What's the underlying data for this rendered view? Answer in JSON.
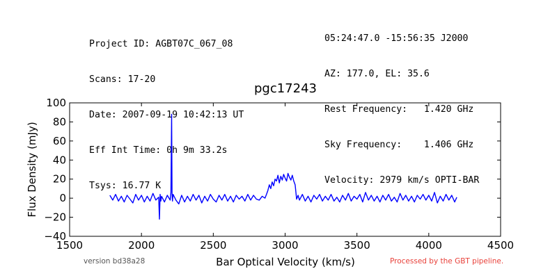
{
  "header": {
    "left_lines": [
      "Project ID: AGBT07C_067_08",
      "Scans: 17-20",
      "Date: 2007-09-19 10:42:13 UT",
      "Eff Int Time: 0h 9m 33.2s",
      "Tsys: 16.77 K"
    ],
    "right_lines": [
      "05:24:47.0 -15:56:35 J2000",
      "AZ: 177.0, EL: 35.6",
      "Rest Frequency:   1.420 GHz",
      "Sky Frequency:    1.406 GHz",
      "Velocity: 2979 km/s OPTI-BAR"
    ]
  },
  "footer": {
    "version": "version bd38a28",
    "pipeline": "Processed by the GBT pipeline."
  },
  "colors": {
    "series": "#0000ff",
    "pipeline_text": "#e8413a",
    "version_text": "#555555"
  },
  "chart_data": {
    "type": "line",
    "title": "pgc17243",
    "xlabel": "Bar Optical Velocity (km/s)",
    "ylabel": "Flux Density (mJy)",
    "xlim": [
      1500,
      4500
    ],
    "ylim": [
      -40,
      100
    ],
    "xticks": [
      1500,
      2000,
      2500,
      3000,
      3500,
      4000,
      4500
    ],
    "yticks": [
      -40,
      -20,
      0,
      20,
      40,
      60,
      80,
      100
    ],
    "grid": false,
    "series": [
      {
        "x": [
          1780,
          1800,
          1820,
          1840,
          1860,
          1880,
          1900,
          1920,
          1940,
          1960,
          1980,
          2000,
          2020,
          2040,
          2060,
          2080,
          2100,
          2120,
          2125,
          2130,
          2135,
          2140,
          2160,
          2180,
          2200,
          2205,
          2210,
          2213,
          2216,
          2220,
          2240,
          2260,
          2280,
          2300,
          2320,
          2340,
          2360,
          2380,
          2400,
          2420,
          2440,
          2460,
          2480,
          2500,
          2520,
          2540,
          2560,
          2580,
          2600,
          2620,
          2640,
          2660,
          2680,
          2700,
          2720,
          2740,
          2760,
          2780,
          2800,
          2820,
          2840,
          2860,
          2870,
          2880,
          2890,
          2900,
          2910,
          2920,
          2930,
          2940,
          2950,
          2960,
          2970,
          2980,
          2990,
          3000,
          3010,
          3020,
          3030,
          3040,
          3050,
          3060,
          3070,
          3080,
          3090,
          3100,
          3120,
          3140,
          3160,
          3180,
          3200,
          3220,
          3240,
          3260,
          3280,
          3300,
          3320,
          3340,
          3360,
          3380,
          3400,
          3420,
          3440,
          3460,
          3480,
          3500,
          3520,
          3540,
          3560,
          3580,
          3600,
          3620,
          3640,
          3660,
          3680,
          3700,
          3720,
          3740,
          3760,
          3780,
          3800,
          3820,
          3840,
          3860,
          3880,
          3900,
          3920,
          3940,
          3960,
          3980,
          4000,
          4020,
          4040,
          4060,
          4080,
          4100,
          4120,
          4140,
          4160,
          4180,
          4195
        ],
        "y": [
          3,
          -2,
          4,
          -3,
          2,
          -4,
          3,
          -1,
          -5,
          4,
          -2,
          3,
          -4,
          2,
          -3,
          5,
          -2,
          1,
          -22,
          4,
          -3,
          2,
          -4,
          3,
          -2,
          6,
          88,
          5,
          -3,
          4,
          -2,
          -6,
          3,
          -4,
          2,
          -3,
          4,
          -2,
          3,
          -5,
          2,
          -3,
          4,
          -1,
          -4,
          3,
          -2,
          4,
          -3,
          2,
          -4,
          3,
          -1,
          2,
          -3,
          4,
          -2,
          3,
          -1,
          -2,
          2,
          0,
          4,
          8,
          14,
          10,
          17,
          13,
          20,
          18,
          24,
          16,
          23,
          19,
          25,
          21,
          18,
          26,
          22,
          19,
          24,
          18,
          14,
          -1,
          3,
          -2,
          4,
          -3,
          2,
          -4,
          3,
          -1,
          4,
          -3,
          2,
          -2,
          4,
          -3,
          1,
          -4,
          3,
          -2,
          5,
          -3,
          2,
          -1,
          4,
          -4,
          6,
          -2,
          3,
          -3,
          2,
          -4,
          3,
          -2,
          4,
          -3,
          1,
          -4,
          5,
          -2,
          3,
          -3,
          2,
          -4,
          3,
          -1,
          4,
          -2,
          3,
          -3,
          6,
          -5,
          2,
          -3,
          4,
          -2,
          3,
          -4,
          1
        ]
      }
    ]
  }
}
